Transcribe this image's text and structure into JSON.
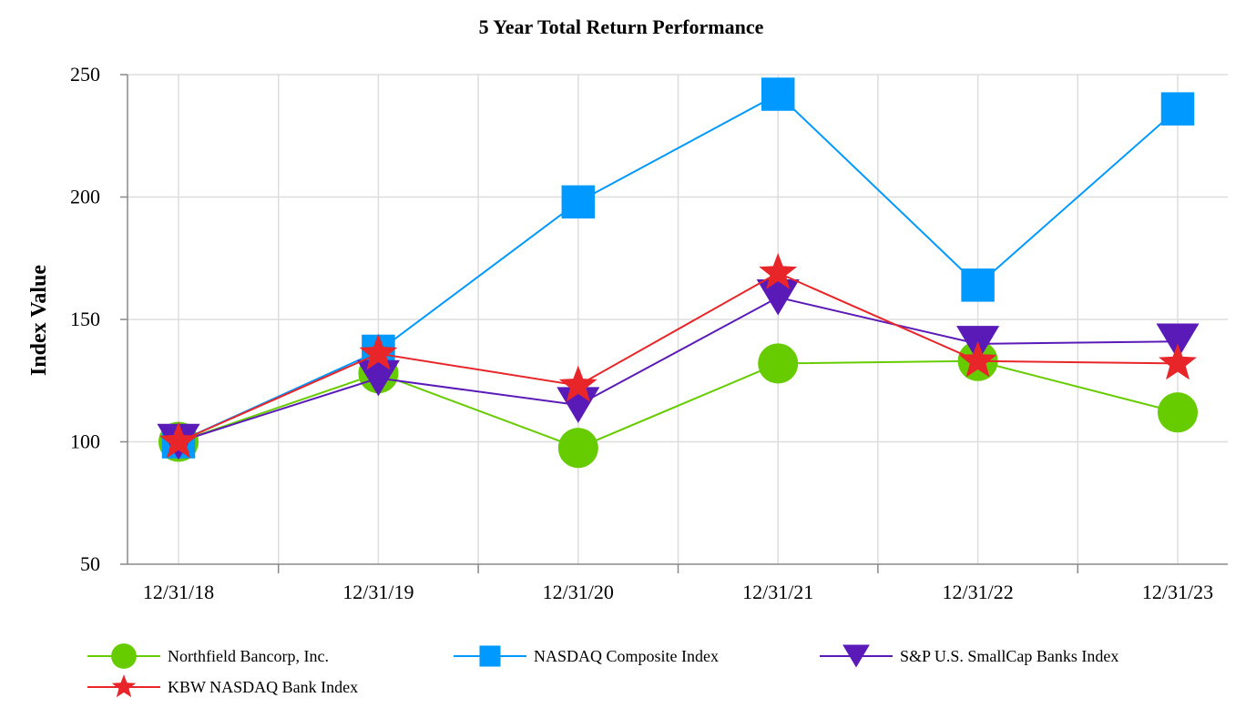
{
  "chart_data": {
    "type": "line",
    "title": "5 Year Total Return Performance",
    "xlabel": "",
    "ylabel": "Index Value",
    "categories": [
      "12/31/18",
      "12/31/19",
      "12/31/20",
      "12/31/21",
      "12/31/22",
      "12/31/23"
    ],
    "ylim": [
      50,
      250
    ],
    "yticks": [
      50,
      100,
      150,
      200,
      250
    ],
    "grid": true,
    "legend_position": "bottom",
    "series": [
      {
        "name": "Northfield Bancorp, Inc.",
        "marker": "circle",
        "color": "#66cc00",
        "values": [
          100,
          128,
          97.5,
          132,
          133,
          112
        ]
      },
      {
        "name": "NASDAQ Composite Index",
        "marker": "square",
        "color": "#0099ff",
        "values": [
          100,
          137,
          198,
          242,
          164,
          236
        ]
      },
      {
        "name": "S&P U.S. SmallCap Banks Index",
        "marker": "triangle-down",
        "color": "#5a1ab8",
        "values": [
          100,
          126,
          115,
          159,
          140,
          141
        ]
      },
      {
        "name": "KBW NASDAQ Bank Index",
        "marker": "star",
        "color": "#e8262a",
        "values": [
          100,
          136,
          123,
          169,
          133,
          132
        ]
      }
    ]
  }
}
